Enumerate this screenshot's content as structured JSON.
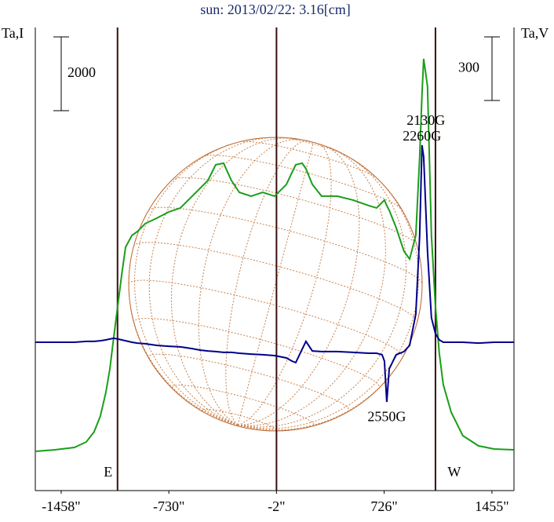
{
  "chart_data": {
    "type": "line",
    "title": "sun: 2013/02/22: 3.16[cm]",
    "y_label": "Ta,I",
    "y2_label": "Ta,V",
    "x": [
      -1633,
      -1500,
      -1368,
      -1288,
      -1235,
      -1193,
      -1156,
      -1129,
      -1103,
      -1076,
      -1049,
      -1023,
      -980,
      -943,
      -890,
      -811,
      -731,
      -652,
      -572,
      -519,
      -466,
      -413,
      -360,
      -307,
      -254,
      -174,
      -95,
      -15,
      65,
      102,
      128,
      171,
      197,
      240,
      303,
      409,
      516,
      622,
      675,
      712,
      728,
      744,
      760,
      807,
      860,
      898,
      940,
      966,
      982,
      993,
      1019,
      1046,
      1073,
      1099,
      1126,
      1179,
      1258,
      1364,
      1470,
      1603
    ],
    "series": [
      {
        "color": "#1a9e1a",
        "values": [
          0,
          43,
          106,
          255,
          532,
          958,
          1596,
          2234,
          3085,
          3937,
          4788,
          5533,
          5852,
          5958,
          6171,
          6320,
          6490,
          6597,
          6916,
          7129,
          7341,
          7767,
          7810,
          7342,
          7022,
          6916,
          7022,
          6916,
          7235,
          7554,
          7767,
          7810,
          7661,
          7235,
          6916,
          6916,
          6810,
          6661,
          6597,
          6746,
          6810,
          6661,
          6533,
          6065,
          5426,
          5213,
          5852,
          7980,
          9682,
          10640,
          9895,
          5852,
          3937,
          2660,
          1809,
          1064,
          426,
          149,
          64,
          43
        ]
      },
      {
        "color": "#00008b",
        "axis": "y2",
        "values": [
          0,
          0,
          0,
          4,
          4,
          7,
          11,
          15,
          19,
          15,
          11,
          7,
          0,
          -4,
          -7,
          -15,
          -19,
          -22,
          -30,
          -37,
          -41,
          -44,
          -48,
          -48,
          -52,
          -56,
          -59,
          -63,
          -74,
          -89,
          -96,
          -33,
          4,
          -41,
          -44,
          -44,
          -48,
          -52,
          -52,
          -59,
          -89,
          -282,
          -126,
          -59,
          -44,
          -15,
          133,
          504,
          930,
          874,
          430,
          115,
          41,
          11,
          0,
          0,
          0,
          -4,
          0,
          0
        ]
      }
    ],
    "xlim": [
      -1633,
      1604
    ],
    "xticks": [
      {
        "value": -1458,
        "label": "-1458\""
      },
      {
        "value": -730,
        "label": "-730\""
      },
      {
        "value": -2,
        "label": "-2\""
      },
      {
        "value": 726,
        "label": "726\""
      },
      {
        "value": 1455,
        "label": "1455\""
      }
    ],
    "ylim": [
      -1064,
      11489
    ],
    "y2lim": [
      -700,
      1485
    ],
    "scale_bars": {
      "y": 2000,
      "y2": 300
    },
    "vlines": [
      {
        "x": -1077,
        "label": "E"
      },
      {
        "x": -2
      },
      {
        "x": 1073,
        "label": "W"
      }
    ],
    "annotations": [
      "2130G",
      "2260G",
      "2550G"
    ]
  }
}
